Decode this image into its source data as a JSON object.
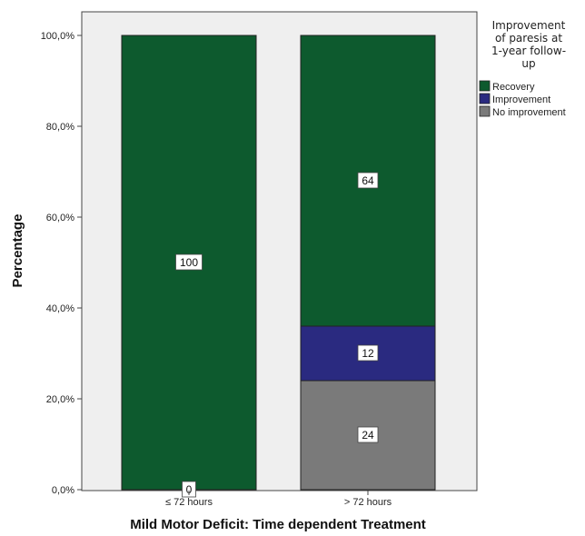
{
  "chart_data": {
    "type": "bar",
    "stacked": true,
    "categories": [
      "≤ 72 hours",
      "> 72 hours"
    ],
    "series": [
      {
        "name": "No improvement",
        "values": [
          0,
          24
        ],
        "color": "#7a7a7a"
      },
      {
        "name": "Improvement",
        "values": [
          0,
          12
        ],
        "color": "#2a2a80"
      },
      {
        "name": "Recovery",
        "values": [
          100,
          64
        ],
        "color": "#0d5a2e"
      }
    ],
    "data_labels": [
      {
        "category": 0,
        "series": 0,
        "text": "0"
      },
      {
        "category": 0,
        "series": 2,
        "text": "100"
      },
      {
        "category": 1,
        "series": 0,
        "text": "24"
      },
      {
        "category": 1,
        "series": 1,
        "text": "12"
      },
      {
        "category": 1,
        "series": 2,
        "text": "64"
      }
    ],
    "xlabel": "Mild Motor Deficit: Time dependent Treatment",
    "ylabel": "Percentage",
    "ylim": [
      0,
      100
    ],
    "yticks": [
      0,
      20,
      40,
      60,
      80,
      100
    ],
    "ytick_labels": [
      "0,0%",
      "20,0%",
      "40,0%",
      "60,0%",
      "80,0%",
      "100,0%"
    ],
    "legend": {
      "title_lines": [
        "Improvement",
        "of paresis at",
        "1-year follow-",
        "up"
      ],
      "entries": [
        "Recovery",
        "Improvement",
        "No improvement"
      ],
      "colors": [
        "#0d5a2e",
        "#2a2a80",
        "#7a7a7a"
      ],
      "placement": "right"
    },
    "plot_background": "#efefef",
    "grid": false
  }
}
